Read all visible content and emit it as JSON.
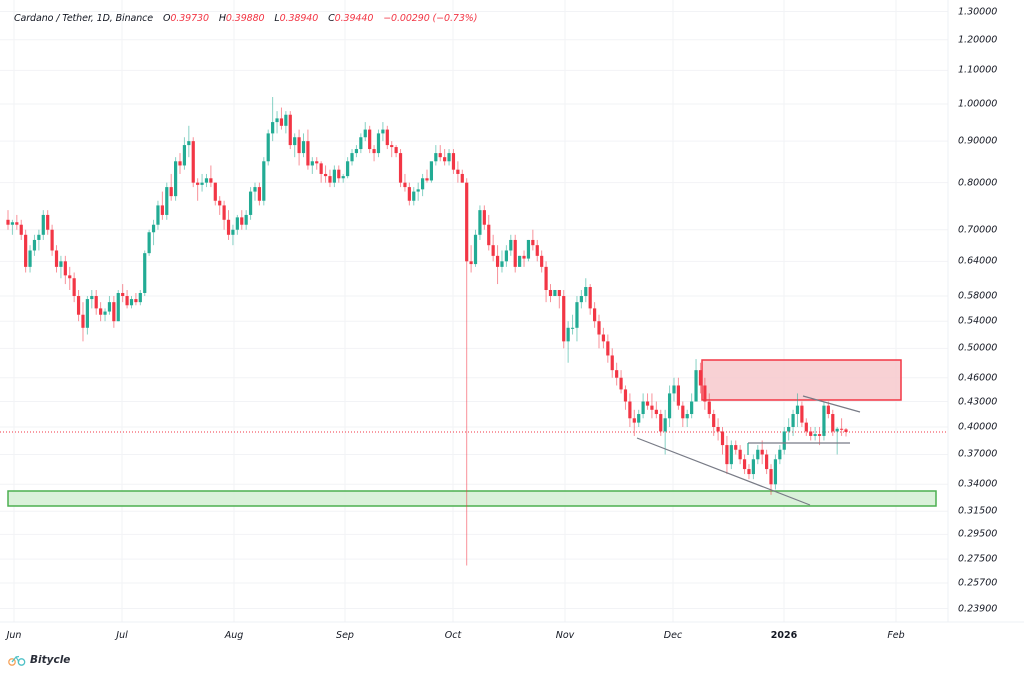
{
  "header": {
    "symbol": "Cardano / Tether, 1D, Binance",
    "open_label": "O",
    "open": "0.39730",
    "high_label": "H",
    "high": "0.39880",
    "low_label": "L",
    "low": "0.38940",
    "close_label": "C",
    "close": "0.39440",
    "change": "−0.00290 (−0.73%)"
  },
  "branding": {
    "name": "Bitycle",
    "icon": "bicycle-logo-icon"
  },
  "colors": {
    "up": "#26a69a",
    "up_candle": "#22ab94",
    "down": "#f23645",
    "grid": "#f0f3fa",
    "resistance_fill": "#f7c9cd",
    "resistance_border": "#f23645",
    "support_fill": "#d6efd6",
    "support_border": "#4caf50",
    "trendline": "#787b86",
    "price_line": "#f23645"
  },
  "chart_data": {
    "type": "candlestick",
    "title": "Cardano / Tether, 1D, Binance",
    "xlabel": "",
    "ylabel": "",
    "yscale": "log",
    "ylim": [
      0.23,
      1.32
    ],
    "grid": true,
    "y_ticks": [
      "1.30000",
      "1.20000",
      "1.10000",
      "1.00000",
      "0.90000",
      "0.80000",
      "0.70000",
      "0.64000",
      "0.58000",
      "0.54000",
      "0.50000",
      "0.46000",
      "0.43000",
      "0.40000",
      "0.37000",
      "0.34000",
      "0.31500",
      "0.29500",
      "0.27500",
      "0.25700",
      "0.23900"
    ],
    "x_ticks": [
      "Jun",
      "Jul",
      "Aug",
      "Sep",
      "Oct",
      "Nov",
      "Dec",
      "2026",
      "Feb"
    ],
    "last_price": 0.3944,
    "annotations": [
      {
        "type": "rectangle",
        "label": "resistance-zone",
        "color": "red",
        "y_top": 0.485,
        "y_bottom": 0.435,
        "x_start": "2025-12-09",
        "x_end": "2026-02-03"
      },
      {
        "type": "rectangle",
        "label": "support-zone",
        "color": "green",
        "y_top": 0.333,
        "y_bottom": 0.318,
        "x_start": "2025-06-01",
        "x_end": "2026-02-13"
      },
      {
        "type": "trendline",
        "label": "lower-channel",
        "from": [
          "2025-11-25",
          0.388
        ],
        "to": [
          "2026-01-07",
          0.32
        ]
      },
      {
        "type": "trendline",
        "label": "descending-resistance",
        "from": [
          "2026-01-06",
          0.44
        ],
        "to": [
          "2026-01-19",
          0.421
        ]
      },
      {
        "type": "hline",
        "label": "range-support",
        "y": 0.38,
        "x_start": "2025-12-20",
        "x_end": "2026-01-19"
      },
      {
        "type": "price-line",
        "label": "current-price",
        "y": 0.3944
      }
    ],
    "ohlc_path": [
      [
        0.72,
        0.74,
        0.7,
        0.71
      ],
      [
        0.71,
        0.72,
        0.69,
        0.715
      ],
      [
        0.715,
        0.73,
        0.7,
        0.71
      ],
      [
        0.71,
        0.72,
        0.68,
        0.69
      ],
      [
        0.69,
        0.7,
        0.62,
        0.63
      ],
      [
        0.63,
        0.67,
        0.62,
        0.66
      ],
      [
        0.66,
        0.69,
        0.65,
        0.68
      ],
      [
        0.68,
        0.7,
        0.66,
        0.69
      ],
      [
        0.69,
        0.74,
        0.68,
        0.73
      ],
      [
        0.73,
        0.74,
        0.69,
        0.7
      ],
      [
        0.7,
        0.71,
        0.65,
        0.66
      ],
      [
        0.66,
        0.67,
        0.62,
        0.63
      ],
      [
        0.63,
        0.65,
        0.61,
        0.64
      ],
      [
        0.64,
        0.65,
        0.6,
        0.615
      ],
      [
        0.615,
        0.63,
        0.59,
        0.61
      ],
      [
        0.61,
        0.62,
        0.57,
        0.58
      ],
      [
        0.58,
        0.59,
        0.54,
        0.55
      ],
      [
        0.55,
        0.57,
        0.51,
        0.53
      ],
      [
        0.53,
        0.58,
        0.52,
        0.575
      ],
      [
        0.575,
        0.59,
        0.56,
        0.58
      ],
      [
        0.58,
        0.59,
        0.55,
        0.56
      ],
      [
        0.56,
        0.57,
        0.54,
        0.55
      ],
      [
        0.55,
        0.56,
        0.54,
        0.555
      ],
      [
        0.555,
        0.58,
        0.55,
        0.57
      ],
      [
        0.57,
        0.58,
        0.53,
        0.54
      ],
      [
        0.54,
        0.59,
        0.54,
        0.585
      ],
      [
        0.585,
        0.6,
        0.57,
        0.58
      ],
      [
        0.58,
        0.59,
        0.56,
        0.565
      ],
      [
        0.565,
        0.58,
        0.56,
        0.575
      ],
      [
        0.575,
        0.585,
        0.565,
        0.57
      ],
      [
        0.57,
        0.59,
        0.565,
        0.585
      ],
      [
        0.585,
        0.66,
        0.58,
        0.655
      ],
      [
        0.655,
        0.7,
        0.65,
        0.695
      ],
      [
        0.695,
        0.72,
        0.67,
        0.71
      ],
      [
        0.71,
        0.76,
        0.7,
        0.75
      ],
      [
        0.75,
        0.78,
        0.72,
        0.73
      ],
      [
        0.73,
        0.8,
        0.72,
        0.79
      ],
      [
        0.79,
        0.82,
        0.76,
        0.77
      ],
      [
        0.77,
        0.86,
        0.76,
        0.85
      ],
      [
        0.85,
        0.87,
        0.82,
        0.84
      ],
      [
        0.84,
        0.91,
        0.83,
        0.89
      ],
      [
        0.89,
        0.94,
        0.86,
        0.9
      ],
      [
        0.9,
        0.91,
        0.79,
        0.8
      ],
      [
        0.8,
        0.81,
        0.76,
        0.795
      ],
      [
        0.795,
        0.82,
        0.78,
        0.8
      ],
      [
        0.8,
        0.82,
        0.79,
        0.81
      ],
      [
        0.81,
        0.84,
        0.79,
        0.8
      ],
      [
        0.8,
        0.8,
        0.75,
        0.76
      ],
      [
        0.76,
        0.77,
        0.73,
        0.75
      ],
      [
        0.75,
        0.76,
        0.7,
        0.72
      ],
      [
        0.72,
        0.74,
        0.68,
        0.69
      ],
      [
        0.69,
        0.71,
        0.67,
        0.7
      ],
      [
        0.7,
        0.73,
        0.69,
        0.725
      ],
      [
        0.725,
        0.74,
        0.7,
        0.71
      ],
      [
        0.71,
        0.74,
        0.7,
        0.73
      ],
      [
        0.73,
        0.79,
        0.72,
        0.78
      ],
      [
        0.78,
        0.8,
        0.76,
        0.79
      ],
      [
        0.79,
        0.8,
        0.75,
        0.76
      ],
      [
        0.76,
        0.86,
        0.75,
        0.85
      ],
      [
        0.85,
        0.93,
        0.84,
        0.92
      ],
      [
        0.92,
        1.02,
        0.9,
        0.95
      ],
      [
        0.95,
        0.98,
        0.92,
        0.96
      ],
      [
        0.96,
        0.99,
        0.93,
        0.94
      ],
      [
        0.94,
        0.98,
        0.92,
        0.97
      ],
      [
        0.97,
        0.98,
        0.88,
        0.89
      ],
      [
        0.89,
        0.92,
        0.86,
        0.91
      ],
      [
        0.91,
        0.93,
        0.84,
        0.87
      ],
      [
        0.87,
        0.92,
        0.86,
        0.9
      ],
      [
        0.9,
        0.93,
        0.83,
        0.84
      ],
      [
        0.84,
        0.86,
        0.82,
        0.85
      ],
      [
        0.85,
        0.86,
        0.83,
        0.845
      ],
      [
        0.845,
        0.85,
        0.8,
        0.82
      ],
      [
        0.82,
        0.84,
        0.8,
        0.815
      ],
      [
        0.815,
        0.83,
        0.79,
        0.8
      ],
      [
        0.8,
        0.84,
        0.79,
        0.83
      ],
      [
        0.83,
        0.84,
        0.8,
        0.81
      ],
      [
        0.81,
        0.82,
        0.8,
        0.815
      ],
      [
        0.815,
        0.86,
        0.81,
        0.85
      ],
      [
        0.85,
        0.88,
        0.84,
        0.87
      ],
      [
        0.87,
        0.89,
        0.86,
        0.88
      ],
      [
        0.88,
        0.92,
        0.87,
        0.91
      ],
      [
        0.91,
        0.95,
        0.9,
        0.93
      ],
      [
        0.93,
        0.94,
        0.87,
        0.88
      ],
      [
        0.88,
        0.89,
        0.85,
        0.87
      ],
      [
        0.87,
        0.93,
        0.86,
        0.92
      ],
      [
        0.92,
        0.95,
        0.9,
        0.93
      ],
      [
        0.93,
        0.94,
        0.88,
        0.89
      ],
      [
        0.89,
        0.9,
        0.86,
        0.885
      ],
      [
        0.885,
        0.89,
        0.86,
        0.87
      ],
      [
        0.87,
        0.88,
        0.79,
        0.8
      ],
      [
        0.8,
        0.82,
        0.78,
        0.79
      ],
      [
        0.79,
        0.8,
        0.75,
        0.76
      ],
      [
        0.76,
        0.79,
        0.75,
        0.78
      ],
      [
        0.78,
        0.8,
        0.76,
        0.785
      ],
      [
        0.785,
        0.82,
        0.77,
        0.81
      ],
      [
        0.81,
        0.83,
        0.8,
        0.805
      ],
      [
        0.805,
        0.84,
        0.8,
        0.85
      ],
      [
        0.85,
        0.89,
        0.84,
        0.87
      ],
      [
        0.87,
        0.89,
        0.85,
        0.86
      ],
      [
        0.86,
        0.88,
        0.84,
        0.85
      ],
      [
        0.85,
        0.88,
        0.84,
        0.87
      ],
      [
        0.87,
        0.88,
        0.82,
        0.83
      ],
      [
        0.83,
        0.85,
        0.8,
        0.82
      ],
      [
        0.82,
        0.83,
        0.8,
        0.8
      ],
      [
        0.8,
        0.81,
        0.27,
        0.64
      ],
      [
        0.64,
        0.67,
        0.62,
        0.635
      ],
      [
        0.635,
        0.7,
        0.63,
        0.69
      ],
      [
        0.69,
        0.75,
        0.68,
        0.74
      ],
      [
        0.74,
        0.75,
        0.7,
        0.71
      ],
      [
        0.71,
        0.73,
        0.66,
        0.67
      ],
      [
        0.67,
        0.69,
        0.64,
        0.65
      ],
      [
        0.65,
        0.67,
        0.6,
        0.63
      ],
      [
        0.63,
        0.66,
        0.62,
        0.64
      ],
      [
        0.64,
        0.67,
        0.63,
        0.66
      ],
      [
        0.66,
        0.69,
        0.65,
        0.68
      ],
      [
        0.68,
        0.69,
        0.62,
        0.63
      ],
      [
        0.63,
        0.65,
        0.63,
        0.65
      ],
      [
        0.65,
        0.66,
        0.63,
        0.645
      ],
      [
        0.645,
        0.68,
        0.64,
        0.68
      ],
      [
        0.68,
        0.7,
        0.66,
        0.67
      ],
      [
        0.67,
        0.68,
        0.64,
        0.65
      ],
      [
        0.65,
        0.66,
        0.62,
        0.63
      ],
      [
        0.63,
        0.64,
        0.57,
        0.59
      ],
      [
        0.59,
        0.6,
        0.57,
        0.58
      ],
      [
        0.58,
        0.59,
        0.58,
        0.59
      ],
      [
        0.59,
        0.59,
        0.56,
        0.58
      ],
      [
        0.58,
        0.59,
        0.5,
        0.51
      ],
      [
        0.51,
        0.54,
        0.48,
        0.53
      ],
      [
        0.53,
        0.55,
        0.52,
        0.53
      ],
      [
        0.53,
        0.58,
        0.51,
        0.57
      ],
      [
        0.57,
        0.59,
        0.56,
        0.58
      ],
      [
        0.58,
        0.61,
        0.57,
        0.595
      ],
      [
        0.595,
        0.6,
        0.55,
        0.56
      ],
      [
        0.56,
        0.57,
        0.53,
        0.54
      ],
      [
        0.54,
        0.55,
        0.5,
        0.52
      ],
      [
        0.52,
        0.53,
        0.5,
        0.51
      ],
      [
        0.51,
        0.52,
        0.48,
        0.49
      ],
      [
        0.49,
        0.5,
        0.46,
        0.47
      ],
      [
        0.47,
        0.48,
        0.45,
        0.46
      ],
      [
        0.46,
        0.47,
        0.44,
        0.445
      ],
      [
        0.445,
        0.45,
        0.42,
        0.43
      ],
      [
        0.43,
        0.44,
        0.4,
        0.41
      ],
      [
        0.41,
        0.42,
        0.39,
        0.405
      ],
      [
        0.405,
        0.42,
        0.4,
        0.415
      ],
      [
        0.415,
        0.44,
        0.41,
        0.43
      ],
      [
        0.43,
        0.44,
        0.42,
        0.425
      ],
      [
        0.425,
        0.44,
        0.41,
        0.42
      ],
      [
        0.42,
        0.43,
        0.41,
        0.415
      ],
      [
        0.415,
        0.42,
        0.39,
        0.395
      ],
      [
        0.395,
        0.42,
        0.37,
        0.41
      ],
      [
        0.41,
        0.45,
        0.4,
        0.44
      ],
      [
        0.44,
        0.46,
        0.43,
        0.45
      ],
      [
        0.45,
        0.46,
        0.42,
        0.425
      ],
      [
        0.425,
        0.43,
        0.4,
        0.41
      ],
      [
        0.41,
        0.42,
        0.4,
        0.415
      ],
      [
        0.415,
        0.44,
        0.41,
        0.43
      ],
      [
        0.43,
        0.485,
        0.43,
        0.47
      ],
      [
        0.47,
        0.48,
        0.44,
        0.45
      ],
      [
        0.45,
        0.46,
        0.42,
        0.43
      ],
      [
        0.43,
        0.44,
        0.41,
        0.415
      ],
      [
        0.415,
        0.42,
        0.39,
        0.4
      ],
      [
        0.4,
        0.41,
        0.385,
        0.395
      ],
      [
        0.395,
        0.4,
        0.37,
        0.38
      ],
      [
        0.38,
        0.39,
        0.35,
        0.36
      ],
      [
        0.36,
        0.385,
        0.355,
        0.38
      ],
      [
        0.38,
        0.385,
        0.37,
        0.375
      ],
      [
        0.375,
        0.38,
        0.36,
        0.365
      ],
      [
        0.365,
        0.37,
        0.35,
        0.355
      ],
      [
        0.355,
        0.36,
        0.345,
        0.35
      ],
      [
        0.35,
        0.37,
        0.345,
        0.365
      ],
      [
        0.365,
        0.38,
        0.36,
        0.375
      ],
      [
        0.375,
        0.385,
        0.36,
        0.37
      ],
      [
        0.37,
        0.375,
        0.35,
        0.355
      ],
      [
        0.355,
        0.36,
        0.33,
        0.34
      ],
      [
        0.34,
        0.37,
        0.335,
        0.365
      ],
      [
        0.365,
        0.38,
        0.36,
        0.375
      ],
      [
        0.375,
        0.4,
        0.37,
        0.395
      ],
      [
        0.395,
        0.41,
        0.385,
        0.4
      ],
      [
        0.4,
        0.42,
        0.39,
        0.415
      ],
      [
        0.415,
        0.44,
        0.4,
        0.425
      ],
      [
        0.425,
        0.43,
        0.4,
        0.405
      ],
      [
        0.405,
        0.41,
        0.39,
        0.395
      ],
      [
        0.395,
        0.4,
        0.385,
        0.39
      ],
      [
        0.39,
        0.4,
        0.385,
        0.392
      ],
      [
        0.392,
        0.4,
        0.38,
        0.39
      ],
      [
        0.39,
        0.43,
        0.385,
        0.425
      ],
      [
        0.425,
        0.43,
        0.41,
        0.415
      ],
      [
        0.415,
        0.42,
        0.39,
        0.395
      ],
      [
        0.395,
        0.4,
        0.37,
        0.398
      ],
      [
        0.398,
        0.41,
        0.39,
        0.397
      ],
      [
        0.3973,
        0.3988,
        0.3894,
        0.3944
      ]
    ]
  }
}
